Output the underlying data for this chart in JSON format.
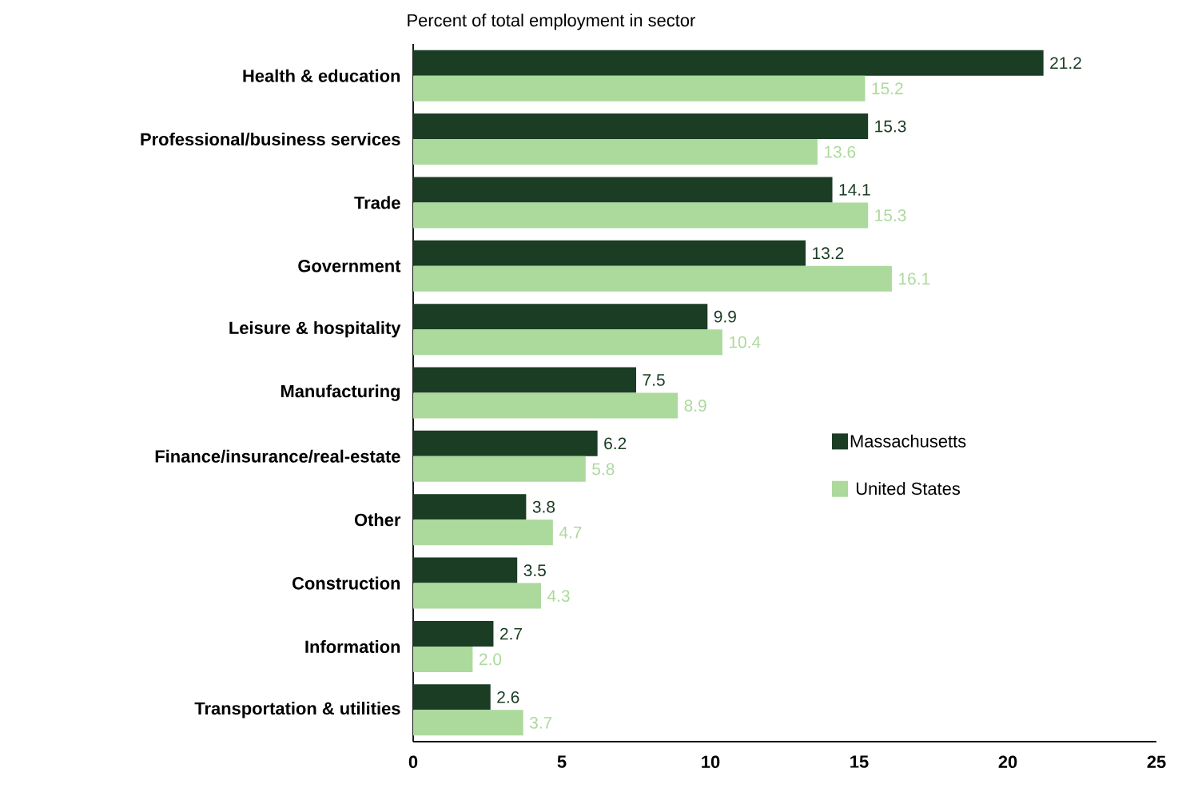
{
  "chart_data": {
    "type": "bar",
    "orientation": "horizontal",
    "title": "Percent of total employment in sector",
    "categories": [
      "Health & education",
      "Professional/business services",
      "Trade",
      "Government",
      "Leisure & hospitality",
      "Manufacturing",
      "Finance/insurance/real-estate",
      "Other",
      "Construction",
      "Information",
      "Transportation & utilities"
    ],
    "series": [
      {
        "name": "Massachusetts",
        "color": "#1a3d24",
        "values": [
          21.2,
          15.3,
          14.1,
          13.2,
          9.9,
          7.5,
          6.2,
          3.8,
          3.5,
          2.7,
          2.6
        ],
        "value_labels": [
          "21.2",
          "15.3",
          "14.1",
          "13.2",
          "9.9",
          "7.5",
          "6.2",
          "3.8",
          "3.5",
          "2.7",
          "2.6"
        ]
      },
      {
        "name": "United States",
        "color": "#acd99c",
        "values": [
          15.2,
          13.6,
          15.3,
          16.1,
          10.4,
          8.9,
          5.8,
          4.7,
          4.3,
          2.0,
          3.7
        ],
        "value_labels": [
          "15.2",
          "13.6",
          "15.3",
          "16.1",
          "10.4",
          "8.9",
          "5.8",
          "4.7",
          "4.3",
          "2.0",
          "3.7"
        ]
      }
    ],
    "xlim": [
      0,
      25
    ],
    "xticks": [
      0,
      5,
      10,
      15,
      20,
      25
    ],
    "grid": false,
    "legend": "right"
  }
}
